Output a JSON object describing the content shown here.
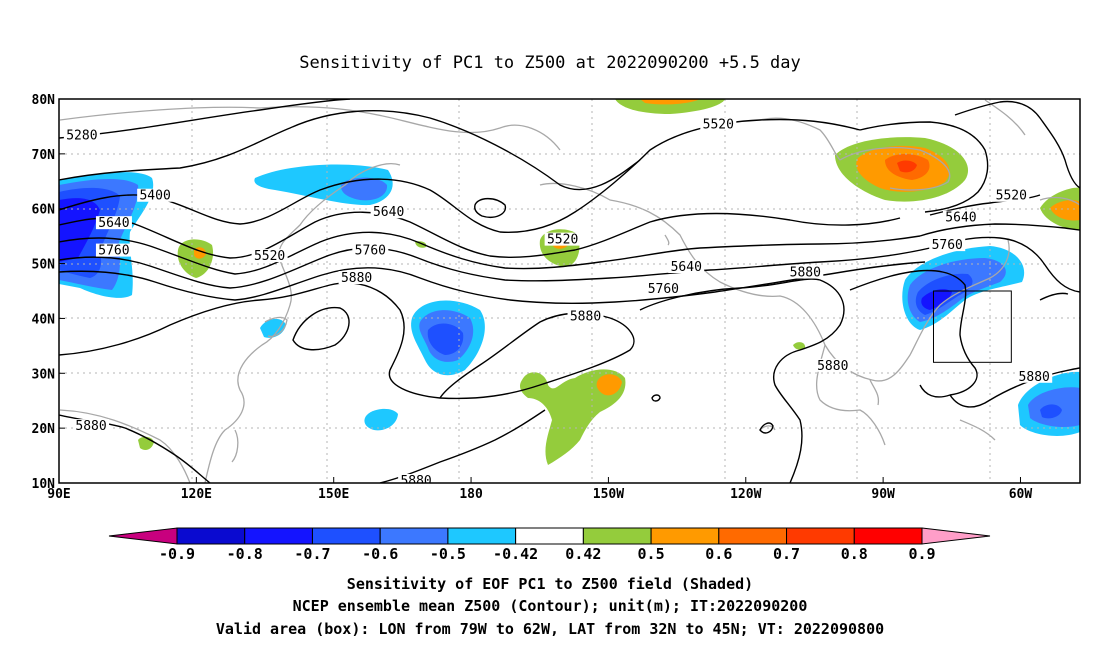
{
  "title": "Sensitivity of PC1 to Z500 at 2022090200 +5.5 day",
  "lat_ticks": [
    {
      "value": 80,
      "label": "80N"
    },
    {
      "value": 70,
      "label": "70N"
    },
    {
      "value": 60,
      "label": "60N"
    },
    {
      "value": 50,
      "label": "50N"
    },
    {
      "value": 40,
      "label": "40N"
    },
    {
      "value": 30,
      "label": "30N"
    },
    {
      "value": 20,
      "label": "20N"
    },
    {
      "value": 10,
      "label": "10N"
    }
  ],
  "lon_ticks": [
    {
      "value": 90,
      "label": "90E"
    },
    {
      "value": 120,
      "label": "120E"
    },
    {
      "value": 150,
      "label": "150E"
    },
    {
      "value": 180,
      "label": "180"
    },
    {
      "value": 210,
      "label": "150W"
    },
    {
      "value": 240,
      "label": "120W"
    },
    {
      "value": 270,
      "label": "90W"
    },
    {
      "value": 300,
      "label": "60W"
    }
  ],
  "extent": {
    "lon": [
      90,
      313
    ],
    "lat": [
      10,
      80
    ]
  },
  "contour_labels": [
    {
      "text": "5280",
      "lon": 95,
      "lat": 73
    },
    {
      "text": "5400",
      "lon": 111,
      "lat": 62
    },
    {
      "text": "5640",
      "lon": 102,
      "lat": 57
    },
    {
      "text": "5760",
      "lon": 102,
      "lat": 52
    },
    {
      "text": "5520",
      "lon": 136,
      "lat": 51
    },
    {
      "text": "5640",
      "lon": 162,
      "lat": 59
    },
    {
      "text": "5760",
      "lon": 158,
      "lat": 52
    },
    {
      "text": "5880",
      "lon": 155,
      "lat": 47
    },
    {
      "text": "5520",
      "lon": 200,
      "lat": 54
    },
    {
      "text": "5880",
      "lon": 205,
      "lat": 40
    },
    {
      "text": "5520",
      "lon": 234,
      "lat": 75
    },
    {
      "text": "5640",
      "lon": 227,
      "lat": 49
    },
    {
      "text": "5760",
      "lon": 222,
      "lat": 45
    },
    {
      "text": "5880",
      "lon": 253,
      "lat": 48
    },
    {
      "text": "5880",
      "lon": 259,
      "lat": 31
    },
    {
      "text": "5760",
      "lon": 284,
      "lat": 53
    },
    {
      "text": "5640",
      "lon": 287,
      "lat": 58
    },
    {
      "text": "5520",
      "lon": 298,
      "lat": 62
    },
    {
      "text": "5880",
      "lon": 303,
      "lat": 29
    },
    {
      "text": "5880",
      "lon": 97,
      "lat": 20
    },
    {
      "text": "5880",
      "lon": 168,
      "lat": 10
    }
  ],
  "valid_box": {
    "lon": [
      281,
      298
    ],
    "lat": [
      32,
      45
    ]
  },
  "colorbar": {
    "labels": [
      "-0.9",
      "-0.8",
      "-0.7",
      "-0.6",
      "-0.5",
      "-0.42",
      "0.42",
      "0.5",
      "0.6",
      "0.7",
      "0.8",
      "0.9"
    ],
    "colors": [
      "#0a0ad0",
      "#1414ff",
      "#1e50ff",
      "#3c78ff",
      "#1ec8ff",
      "#ffffff",
      "#94cc3c",
      "#ff9a00",
      "#ff6a00",
      "#ff3a00",
      "#ff0000"
    ],
    "left_arrow_color": "#c8007e",
    "right_arrow_color": "#ff9ec8"
  },
  "caption": {
    "line1": "Sensitivity of EOF PC1 to Z500 field (Shaded)",
    "line2": "NCEP ensemble mean Z500 (Contour); unit(m); IT:2022090200",
    "line3": "Valid area (box): LON from 79W to 62W, LAT from 32N to 45N; VT: 2022090800"
  }
}
